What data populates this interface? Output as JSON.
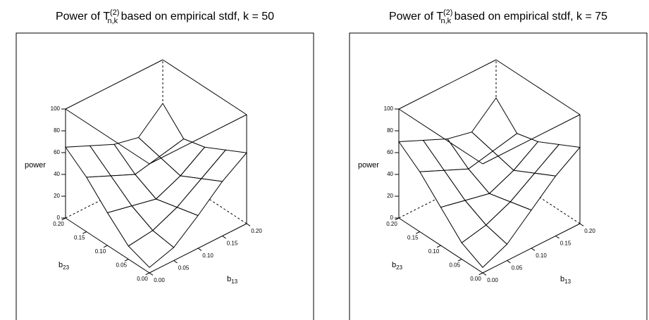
{
  "chart_data": [
    {
      "type": "surface",
      "title": {
        "main": "Power of T",
        "sup": "(2)",
        "sub": "n,k",
        "rest": " based on empirical stdf, k = 50"
      },
      "xlabel": {
        "base": "b",
        "sub": "13"
      },
      "ylabel": {
        "base": "b",
        "sub": "23"
      },
      "zlabel": "power",
      "x": [
        0,
        0.05,
        0.1,
        0.15,
        0.2
      ],
      "y": [
        0,
        0.05,
        0.1,
        0.15,
        0.2
      ],
      "z": [
        [
          5,
          12,
          30,
          50,
          65
        ],
        [
          12,
          15,
          25,
          40,
          55
        ],
        [
          30,
          25,
          20,
          30,
          45
        ],
        [
          50,
          40,
          30,
          35,
          40
        ],
        [
          65,
          55,
          45,
          40,
          60
        ]
      ],
      "xlim": [
        0,
        0.2
      ],
      "ylim": [
        0,
        0.2
      ],
      "zlim": [
        0,
        100
      ],
      "xticks": [
        {
          "value": 0,
          "label": "0.00"
        },
        {
          "value": 0.05,
          "label": "0.05"
        },
        {
          "value": 0.1,
          "label": "0.10"
        },
        {
          "value": 0.15,
          "label": "0.15"
        },
        {
          "value": 0.2,
          "label": "0.20"
        }
      ],
      "yticks": [
        {
          "value": 0,
          "label": "0.00"
        },
        {
          "value": 0.05,
          "label": "0.05"
        },
        {
          "value": 0.1,
          "label": "0.10"
        },
        {
          "value": 0.15,
          "label": "0.15"
        },
        {
          "value": 0.2,
          "label": "0.20"
        }
      ],
      "zticks": [
        0,
        20,
        40,
        60,
        80,
        100
      ]
    },
    {
      "type": "surface",
      "title": {
        "main": "Power of T",
        "sup": "(2)",
        "sub": "n,k",
        "rest": " based on empirical stdf, k = 75"
      },
      "xlabel": {
        "base": "b",
        "sub": "13"
      },
      "ylabel": {
        "base": "b",
        "sub": "23"
      },
      "zlabel": "power",
      "x": [
        0,
        0.05,
        0.1,
        0.15,
        0.2
      ],
      "y": [
        0,
        0.05,
        0.1,
        0.15,
        0.2
      ],
      "z": [
        [
          5,
          15,
          35,
          55,
          70
        ],
        [
          15,
          20,
          30,
          45,
          60
        ],
        [
          35,
          30,
          25,
          35,
          50
        ],
        [
          55,
          45,
          35,
          40,
          45
        ],
        [
          70,
          60,
          50,
          45,
          65
        ]
      ],
      "xlim": [
        0,
        0.2
      ],
      "ylim": [
        0,
        0.2
      ],
      "zlim": [
        0,
        100
      ],
      "xticks": [
        {
          "value": 0,
          "label": "0.00"
        },
        {
          "value": 0.05,
          "label": "0.05"
        },
        {
          "value": 0.1,
          "label": "0.10"
        },
        {
          "value": 0.15,
          "label": "0.15"
        },
        {
          "value": 0.2,
          "label": "0.20"
        }
      ],
      "yticks": [
        {
          "value": 0,
          "label": "0.00"
        },
        {
          "value": 0.05,
          "label": "0.05"
        },
        {
          "value": 0.1,
          "label": "0.10"
        },
        {
          "value": 0.15,
          "label": "0.15"
        },
        {
          "value": 0.2,
          "label": "0.20"
        }
      ],
      "zticks": [
        0,
        20,
        40,
        60,
        80,
        100
      ]
    }
  ]
}
